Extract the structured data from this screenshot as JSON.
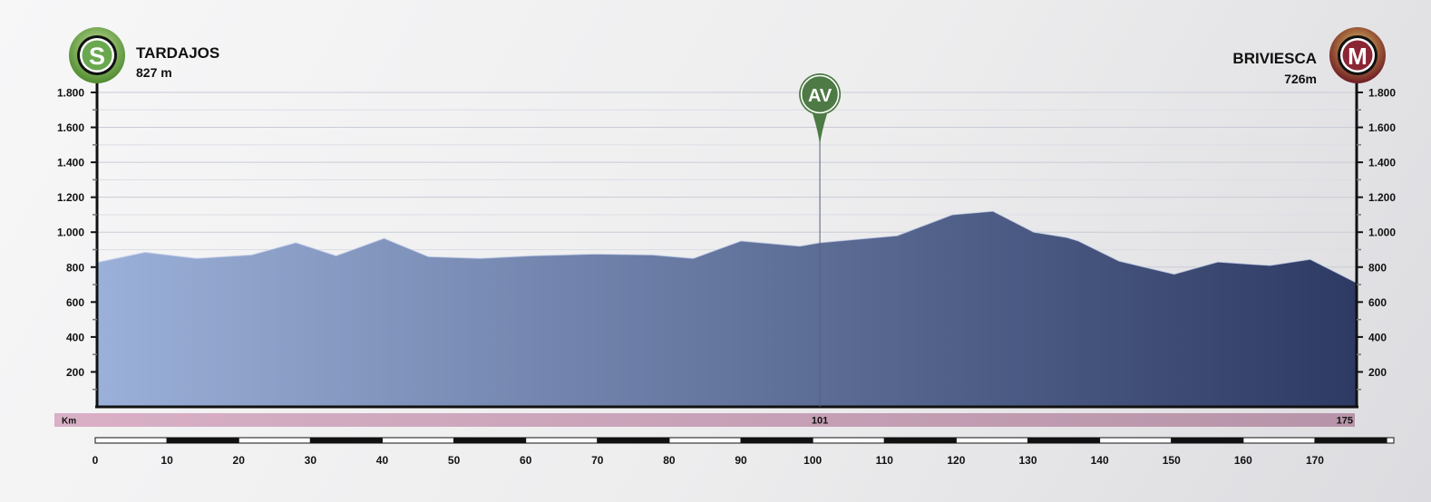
{
  "start": {
    "badge": "S",
    "name": "TARDAJOS",
    "elevation": "827 m",
    "color": "#6aa84f"
  },
  "finish": {
    "badge": "M",
    "name": "BRIVIESCA",
    "elevation": "726m",
    "color": "#7a1f2b"
  },
  "sprint": {
    "badge": "AV",
    "km": 101,
    "label": "101",
    "color": "#4d7a45"
  },
  "km_bar": {
    "label": "Km",
    "total_label": "175",
    "color": "#d5a9bf"
  },
  "colors": {
    "fill_start": "#9bb0d8",
    "fill_end": "#2d3a64",
    "ridge": "#cfd8ee"
  },
  "chart_data": {
    "type": "area",
    "title": "",
    "xlabel": "Km",
    "ylabel": "",
    "xlim": [
      0,
      176
    ],
    "ylim": [
      0,
      1800
    ],
    "y_ticks": [
      200,
      400,
      600,
      800,
      1000,
      1200,
      1400,
      1600,
      1800
    ],
    "y_tick_labels": [
      "200",
      "400",
      "600",
      "800",
      "1.000",
      "1.200",
      "1.400",
      "1.600",
      "1.800"
    ],
    "x_ticks": [
      0,
      10,
      20,
      30,
      40,
      50,
      60,
      70,
      80,
      90,
      100,
      110,
      120,
      130,
      140,
      150,
      160,
      170
    ],
    "x_tick_labels": [
      "0",
      "10",
      "20",
      "30",
      "40",
      "50",
      "60",
      "70",
      "80",
      "90",
      "100",
      "110",
      "120",
      "130",
      "140",
      "150",
      "160",
      "170"
    ],
    "grid": true,
    "x": [
      0,
      6.7,
      13.9,
      21.6,
      27.8,
      33.4,
      40.1,
      46.3,
      53.5,
      60.7,
      69.4,
      77.6,
      83.3,
      90,
      98.2,
      101,
      111.8,
      119.5,
      125.2,
      130.9,
      135.5,
      137.1,
      142.8,
      150.5,
      156.6,
      161.8,
      163.9,
      169.5,
      176
    ],
    "elevation": [
      827,
      885,
      850,
      870,
      940,
      865,
      965,
      860,
      850,
      865,
      875,
      870,
      850,
      950,
      920,
      940,
      980,
      1100,
      1120,
      1000,
      970,
      950,
      835,
      760,
      830,
      815,
      810,
      845,
      710
    ]
  }
}
